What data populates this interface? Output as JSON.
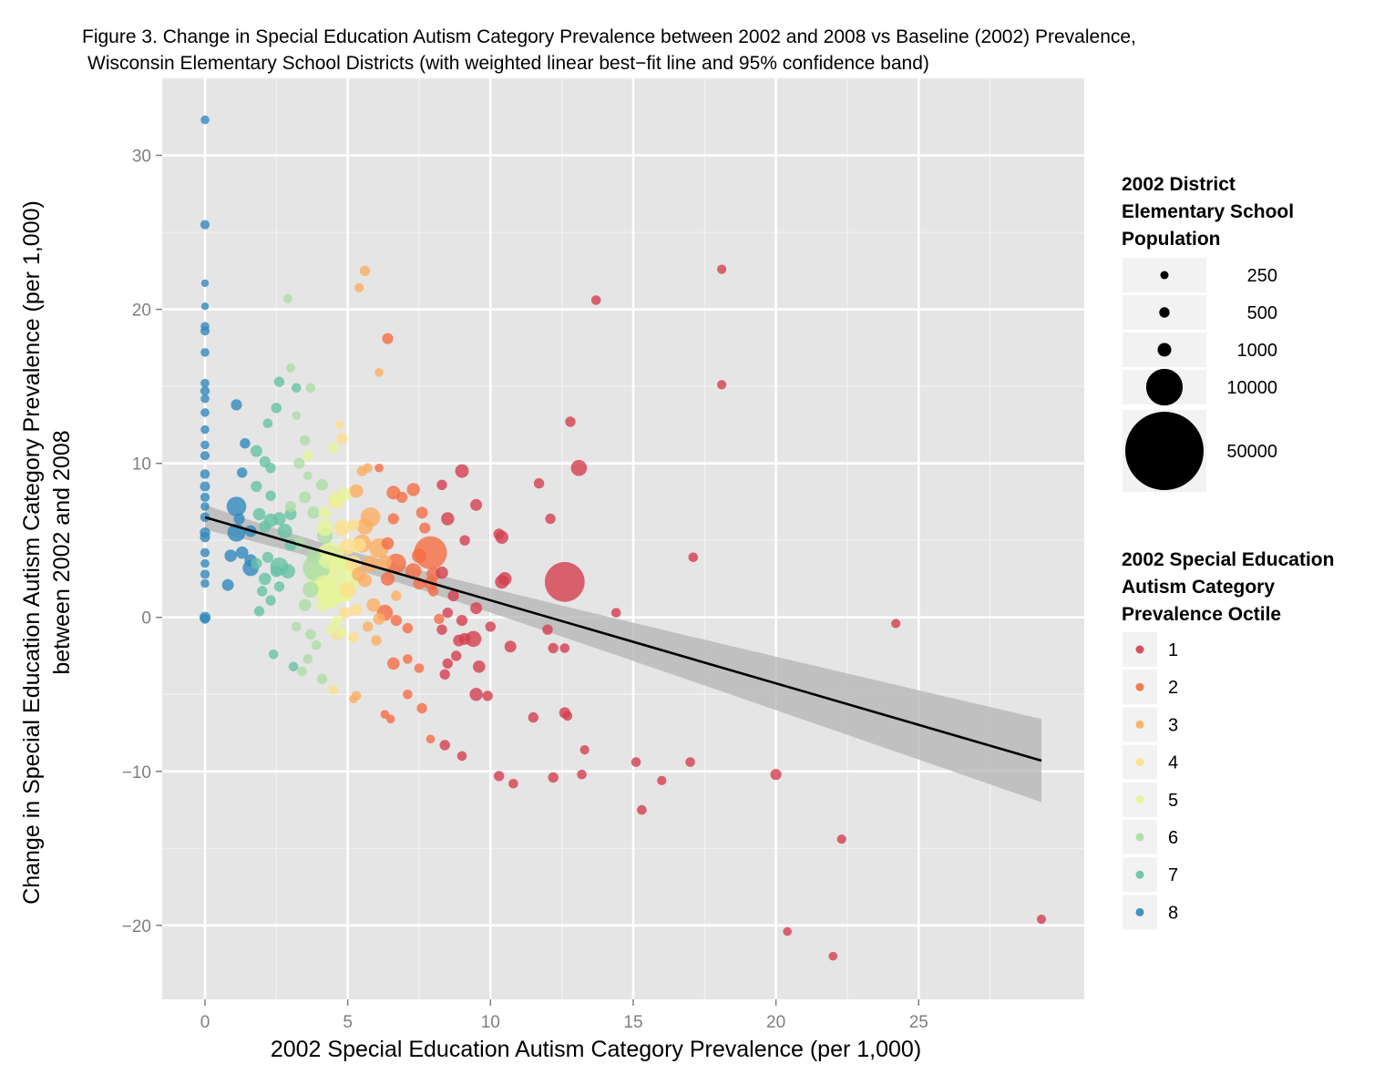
{
  "chart_data": {
    "type": "scatter",
    "title_lines": [
      "Figure 3. Change in Special Education Autism Category Prevalence between 2002 and 2008 vs Baseline (2002) Prevalence,",
      "Wisconsin Elementary School Districts (with weighted linear best−fit line and 95% confidence band)"
    ],
    "xlabel": "2002 Special Education Autism Category Prevalence (per 1,000)",
    "ylabel_lines": [
      "Change in Special Education Autism Category Prevalence (per 1,000)",
      "between 2002 and 2008"
    ],
    "xlim": [
      -1.5,
      30.8
    ],
    "ylim": [
      -24.8,
      35.0
    ],
    "x_ticks": [
      0,
      5,
      10,
      15,
      20,
      25
    ],
    "x_tick_labels": [
      "0",
      "5",
      "10",
      "15",
      "20",
      "25"
    ],
    "y_ticks": [
      -20,
      -10,
      0,
      10,
      20,
      30
    ],
    "y_tick_labels": [
      "−20",
      "−10",
      "0",
      "10",
      "20",
      "30"
    ],
    "grid": true,
    "background": "#e5e5e5",
    "fit_line": {
      "x": [
        0,
        29.3
      ],
      "y": [
        6.5,
        -9.3
      ],
      "color": "#000000"
    },
    "confidence_band": {
      "x": [
        0,
        29.3
      ],
      "upper": [
        7.3,
        -6.6
      ],
      "lower": [
        5.7,
        -12.0
      ],
      "color": "#b3b3b3"
    },
    "size_legend": {
      "title_lines": [
        "2002 District",
        "Elementary School",
        "Population"
      ],
      "entries": [
        {
          "label": "250",
          "size": 250
        },
        {
          "label": "500",
          "size": 500
        },
        {
          "label": "1000",
          "size": 1000
        },
        {
          "label": "10000",
          "size": 10000
        },
        {
          "label": "50000",
          "size": 50000
        }
      ]
    },
    "color_legend": {
      "title_lines": [
        "2002 Special Education",
        "Autism Category",
        "Prevalence Octile"
      ],
      "entries": [
        {
          "label": "1",
          "color": "#d53e4f"
        },
        {
          "label": "2",
          "color": "#f46d43"
        },
        {
          "label": "3",
          "color": "#fdae61"
        },
        {
          "label": "4",
          "color": "#fee08b"
        },
        {
          "label": "5",
          "color": "#e6f598"
        },
        {
          "label": "6",
          "color": "#abdda4"
        },
        {
          "label": "7",
          "color": "#66c2a5"
        },
        {
          "label": "8",
          "color": "#3288bd"
        }
      ]
    },
    "points": [
      [
        0,
        32.3,
        300,
        8
      ],
      [
        0,
        25.5,
        350,
        8
      ],
      [
        0,
        21.7,
        200,
        8
      ],
      [
        0,
        20.2,
        200,
        8
      ],
      [
        0,
        18.9,
        300,
        8
      ],
      [
        0,
        18.6,
        350,
        8
      ],
      [
        0,
        17.2,
        300,
        8
      ],
      [
        0,
        15.2,
        300,
        8
      ],
      [
        0,
        14.7,
        350,
        8
      ],
      [
        0,
        14.2,
        300,
        8
      ],
      [
        0,
        13.3,
        300,
        8
      ],
      [
        0,
        12.2,
        300,
        8
      ],
      [
        0,
        11.2,
        300,
        8
      ],
      [
        0,
        10.5,
        350,
        8
      ],
      [
        0,
        9.3,
        400,
        8
      ],
      [
        0,
        8.5,
        450,
        8
      ],
      [
        0,
        7.8,
        350,
        8
      ],
      [
        0,
        7.2,
        300,
        8
      ],
      [
        0,
        6.5,
        400,
        8
      ],
      [
        0,
        5.5,
        500,
        8
      ],
      [
        0,
        5.2,
        450,
        8
      ],
      [
        0,
        4.2,
        350,
        8
      ],
      [
        0,
        3.5,
        300,
        8
      ],
      [
        0,
        2.8,
        350,
        8
      ],
      [
        0,
        2.2,
        300,
        8
      ],
      [
        0,
        0,
        600,
        8
      ],
      [
        0,
        -0.1,
        400,
        8
      ],
      [
        1.1,
        13.8,
        600,
        8
      ],
      [
        1.4,
        11.3,
        500,
        8
      ],
      [
        1.3,
        9.4,
        500,
        8
      ],
      [
        1.1,
        7.2,
        2500,
        8
      ],
      [
        1.1,
        5.5,
        2000,
        8
      ],
      [
        1.3,
        4.2,
        800,
        8
      ],
      [
        1.6,
        3.2,
        1500,
        8
      ],
      [
        1.6,
        3.7,
        800,
        8
      ],
      [
        0.9,
        4.0,
        800,
        8
      ],
      [
        0.8,
        2.1,
        700,
        8
      ],
      [
        1.2,
        6.4,
        600,
        8
      ],
      [
        1.6,
        5.6,
        700,
        8
      ],
      [
        1.8,
        10.8,
        700,
        7
      ],
      [
        2.1,
        10.1,
        600,
        7
      ],
      [
        2.3,
        9.7,
        500,
        7
      ],
      [
        1.8,
        8.5,
        600,
        7
      ],
      [
        2.3,
        7.9,
        500,
        7
      ],
      [
        1.9,
        6.7,
        800,
        7
      ],
      [
        2.3,
        6.3,
        1000,
        7
      ],
      [
        2.6,
        6.4,
        900,
        7
      ],
      [
        2.1,
        5.9,
        700,
        7
      ],
      [
        2.8,
        5.6,
        1200,
        7
      ],
      [
        3.0,
        4.7,
        700,
        7
      ],
      [
        2.6,
        3.3,
        2000,
        7
      ],
      [
        2.9,
        3.0,
        1200,
        7
      ],
      [
        2.1,
        2.5,
        800,
        7
      ],
      [
        2.6,
        2.0,
        500,
        7
      ],
      [
        2.0,
        1.7,
        500,
        7
      ],
      [
        2.3,
        1.1,
        500,
        7
      ],
      [
        1.9,
        0.4,
        500,
        7
      ],
      [
        2.4,
        -2.4,
        400,
        7
      ],
      [
        3.1,
        -3.2,
        400,
        7
      ],
      [
        2.5,
        13.6,
        500,
        7
      ],
      [
        2.6,
        15.3,
        500,
        7
      ],
      [
        2.2,
        12.6,
        400,
        7
      ],
      [
        3.2,
        14.9,
        400,
        7
      ],
      [
        2.5,
        3.0,
        700,
        7
      ],
      [
        3.0,
        6.7,
        700,
        7
      ],
      [
        1.8,
        3.5,
        600,
        7
      ],
      [
        2.2,
        3.9,
        600,
        7
      ],
      [
        2.9,
        20.7,
        350,
        6
      ],
      [
        3.0,
        16.2,
        350,
        6
      ],
      [
        3.2,
        13.1,
        300,
        6
      ],
      [
        3.7,
        14.9,
        400,
        6
      ],
      [
        3.5,
        11.5,
        500,
        6
      ],
      [
        3.3,
        10.0,
        600,
        6
      ],
      [
        3.5,
        7.8,
        700,
        6
      ],
      [
        3.0,
        7.2,
        600,
        6
      ],
      [
        3.8,
        6.8,
        800,
        6
      ],
      [
        4.1,
        8.6,
        700,
        6
      ],
      [
        3.3,
        4.8,
        900,
        6
      ],
      [
        3.8,
        4.0,
        1200,
        6
      ],
      [
        4.2,
        5.3,
        1500,
        6
      ],
      [
        3.9,
        3.2,
        5000,
        6
      ],
      [
        3.7,
        1.8,
        1500,
        6
      ],
      [
        3.5,
        0.8,
        800,
        6
      ],
      [
        3.2,
        -0.6,
        400,
        6
      ],
      [
        3.7,
        -1.1,
        500,
        6
      ],
      [
        3.9,
        -1.8,
        400,
        6
      ],
      [
        4.1,
        -4.0,
        500,
        6
      ],
      [
        3.6,
        -2.7,
        400,
        6
      ],
      [
        3.4,
        -3.5,
        400,
        6
      ],
      [
        3.6,
        9.2,
        300,
        6
      ],
      [
        4.2,
        5.8,
        1500,
        5
      ],
      [
        4.4,
        4.0,
        5000,
        5
      ],
      [
        4.5,
        2.5,
        20000,
        5
      ],
      [
        4.4,
        1.2,
        2500,
        5
      ],
      [
        4.9,
        3.5,
        1500,
        5
      ],
      [
        4.1,
        0.8,
        800,
        5
      ],
      [
        4.6,
        -0.3,
        700,
        5
      ],
      [
        4.8,
        -1.0,
        500,
        5
      ],
      [
        3.6,
        10.5,
        500,
        5
      ],
      [
        4.5,
        11.0,
        500,
        5
      ],
      [
        4.2,
        6.8,
        800,
        5
      ],
      [
        4.6,
        7.6,
        1000,
        5
      ],
      [
        4.9,
        8.0,
        1000,
        5
      ],
      [
        4.2,
        2.0,
        3500,
        5
      ],
      [
        4.9,
        1.5,
        1500,
        5
      ],
      [
        4.4,
        -0.8,
        400,
        5
      ],
      [
        4.7,
        12.5,
        300,
        4
      ],
      [
        4.8,
        11.6,
        600,
        4
      ],
      [
        4.6,
        7.6,
        1500,
        4
      ],
      [
        4.8,
        5.8,
        1500,
        4
      ],
      [
        5.0,
        4.6,
        1500,
        4
      ],
      [
        5.2,
        3.5,
        1500,
        4
      ],
      [
        5.0,
        1.8,
        1500,
        4
      ],
      [
        4.9,
        0.3,
        800,
        4
      ],
      [
        5.3,
        0.5,
        700,
        4
      ],
      [
        4.6,
        -1.1,
        600,
        4
      ],
      [
        5.2,
        -1.3,
        500,
        4
      ],
      [
        4.5,
        -4.7,
        400,
        4
      ],
      [
        5.2,
        6.0,
        700,
        4
      ],
      [
        5.4,
        4.7,
        1000,
        4
      ],
      [
        5.6,
        22.5,
        500,
        3
      ],
      [
        5.4,
        21.4,
        350,
        3
      ],
      [
        6.1,
        15.9,
        300,
        3
      ],
      [
        5.5,
        9.5,
        500,
        3
      ],
      [
        5.7,
        9.7,
        400,
        3
      ],
      [
        5.3,
        8.2,
        1000,
        3
      ],
      [
        5.8,
        6.5,
        2500,
        3
      ],
      [
        5.6,
        5.9,
        1500,
        3
      ],
      [
        5.5,
        4.8,
        2000,
        3
      ],
      [
        6.1,
        4.5,
        2500,
        3
      ],
      [
        5.8,
        3.5,
        1500,
        3
      ],
      [
        5.4,
        2.8,
        1200,
        3
      ],
      [
        5.6,
        2.4,
        1000,
        3
      ],
      [
        5.9,
        0.8,
        1000,
        3
      ],
      [
        6.1,
        -0.1,
        700,
        3
      ],
      [
        5.3,
        -5.1,
        400,
        3
      ],
      [
        6.0,
        -1.5,
        500,
        3
      ],
      [
        5.7,
        -0.6,
        500,
        3
      ],
      [
        5.2,
        -5.3,
        300,
        3
      ],
      [
        6.7,
        1.4,
        500,
        3
      ],
      [
        6.3,
        3.6,
        1000,
        3
      ],
      [
        6.4,
        18.1,
        600,
        2
      ],
      [
        6.6,
        8.1,
        1000,
        2
      ],
      [
        6.9,
        7.8,
        600,
        2
      ],
      [
        6.6,
        6.4,
        600,
        2
      ],
      [
        6.4,
        4.8,
        800,
        2
      ],
      [
        6.7,
        3.5,
        2500,
        2
      ],
      [
        6.4,
        2.5,
        1000,
        2
      ],
      [
        6.3,
        0.3,
        1500,
        2
      ],
      [
        6.7,
        -0.2,
        600,
        2
      ],
      [
        6.6,
        -3.0,
        800,
        2
      ],
      [
        7.3,
        8.3,
        900,
        2
      ],
      [
        7.6,
        6.8,
        700,
        2
      ],
      [
        7.7,
        5.8,
        600,
        2
      ],
      [
        7.5,
        4.0,
        1200,
        2
      ],
      [
        7.9,
        4.2,
        8000,
        2
      ],
      [
        7.3,
        3.0,
        1500,
        2
      ],
      [
        7.5,
        2.2,
        700,
        2
      ],
      [
        8.0,
        2.8,
        1000,
        2
      ],
      [
        8.0,
        1.7,
        500,
        2
      ],
      [
        7.1,
        -0.7,
        500,
        2
      ],
      [
        7.5,
        -3.3,
        400,
        2
      ],
      [
        7.1,
        -2.7,
        400,
        2
      ],
      [
        7.1,
        -5.0,
        400,
        2
      ],
      [
        7.6,
        -5.9,
        500,
        2
      ],
      [
        7.9,
        -7.9,
        300,
        2
      ],
      [
        6.3,
        -6.3,
        300,
        2
      ],
      [
        6.5,
        -6.6,
        300,
        2
      ],
      [
        8.2,
        -0.1,
        500,
        2
      ],
      [
        6.1,
        9.7,
        300,
        2
      ],
      [
        7.9,
        2.2,
        1000,
        2
      ],
      [
        8.3,
        8.6,
        500,
        1
      ],
      [
        8.5,
        6.4,
        900,
        1
      ],
      [
        9.0,
        9.5,
        1000,
        1
      ],
      [
        9.1,
        5.0,
        500,
        1
      ],
      [
        8.3,
        2.9,
        800,
        1
      ],
      [
        8.7,
        1.4,
        600,
        1
      ],
      [
        8.3,
        -0.8,
        500,
        1
      ],
      [
        8.5,
        0.3,
        500,
        1
      ],
      [
        9.0,
        -0.2,
        600,
        1
      ],
      [
        8.9,
        -1.5,
        700,
        1
      ],
      [
        9.1,
        -1.4,
        700,
        1
      ],
      [
        9.4,
        -1.4,
        1500,
        1
      ],
      [
        8.8,
        -2.5,
        500,
        1
      ],
      [
        8.5,
        -3.0,
        500,
        1
      ],
      [
        8.4,
        -3.7,
        500,
        1
      ],
      [
        9.6,
        -3.2,
        800,
        1
      ],
      [
        9.5,
        -5.0,
        900,
        1
      ],
      [
        9.9,
        -5.1,
        500,
        1
      ],
      [
        8.4,
        -8.3,
        500,
        1
      ],
      [
        9.0,
        -9.0,
        400,
        1
      ],
      [
        9.5,
        7.3,
        700,
        1
      ],
      [
        9.5,
        0.6,
        700,
        1
      ],
      [
        10.0,
        -0.6,
        500,
        1
      ],
      [
        10.3,
        5.4,
        600,
        1
      ],
      [
        10.4,
        5.2,
        900,
        1
      ],
      [
        10.4,
        2.3,
        1000,
        1
      ],
      [
        10.5,
        2.5,
        1000,
        1
      ],
      [
        10.7,
        -1.9,
        700,
        1
      ],
      [
        10.3,
        -10.3,
        500,
        1
      ],
      [
        10.8,
        -10.8,
        400,
        1
      ],
      [
        11.7,
        8.7,
        500,
        1
      ],
      [
        12.1,
        6.4,
        500,
        1
      ],
      [
        12.0,
        -0.8,
        500,
        1
      ],
      [
        12.2,
        -2.0,
        500,
        1
      ],
      [
        12.6,
        -2.0,
        400,
        1
      ],
      [
        12.6,
        2.3,
        12000,
        1
      ],
      [
        12.8,
        12.7,
        500,
        1
      ],
      [
        13.1,
        9.7,
        1500,
        1
      ],
      [
        13.7,
        20.6,
        400,
        1
      ],
      [
        12.6,
        -6.2,
        600,
        1
      ],
      [
        12.7,
        -6.4,
        400,
        1
      ],
      [
        11.5,
        -6.5,
        500,
        1
      ],
      [
        13.3,
        -8.6,
        350,
        1
      ],
      [
        12.2,
        -10.4,
        500,
        1
      ],
      [
        13.2,
        -10.2,
        400,
        1
      ],
      [
        14.4,
        0.3,
        400,
        1
      ],
      [
        15.1,
        -9.4,
        400,
        1
      ],
      [
        15.3,
        -12.5,
        400,
        1
      ],
      [
        16.0,
        -10.6,
        350,
        1
      ],
      [
        17.0,
        -9.4,
        400,
        1
      ],
      [
        17.1,
        3.9,
        400,
        1
      ],
      [
        18.1,
        22.6,
        350,
        1
      ],
      [
        18.1,
        15.1,
        350,
        1
      ],
      [
        20.0,
        -10.2,
        600,
        1
      ],
      [
        20.4,
        -20.4,
        300,
        1
      ],
      [
        22.0,
        -22.0,
        300,
        1
      ],
      [
        22.3,
        -14.4,
        350,
        1
      ],
      [
        24.2,
        -0.4,
        350,
        1
      ],
      [
        29.3,
        -19.6,
        350,
        1
      ]
    ]
  }
}
